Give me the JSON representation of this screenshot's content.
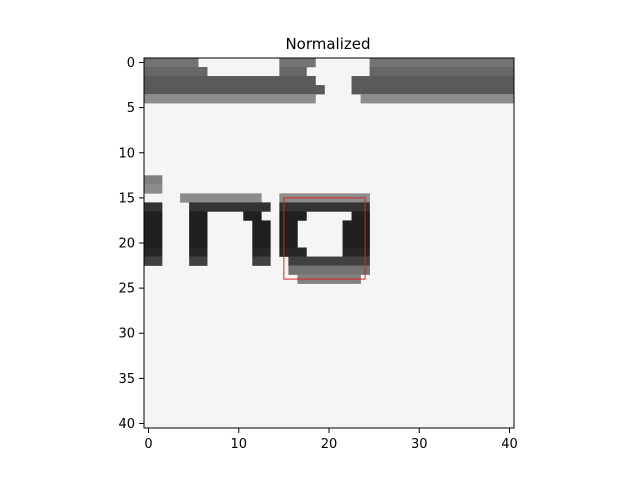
{
  "chart_data": {
    "type": "heatmap",
    "title": "Normalized",
    "colormap": "gray",
    "background_value_color": "#f5f5f5",
    "dark_color": "#111111",
    "xlim": [
      -0.5,
      40.5
    ],
    "ylim": [
      40.5,
      -0.5
    ],
    "x_ticks": [
      0,
      10,
      20,
      30,
      40
    ],
    "y_ticks": [
      0,
      5,
      10,
      15,
      20,
      25,
      30,
      35,
      40
    ],
    "grid_size": [
      41,
      41
    ],
    "grid_note": "41x41 normalized grayscale crop of text; dark pixels form letters 'in' and 'o' around rows 13-25, partial text row at top rows 0-4",
    "dark_pixels": [
      {
        "row": 0,
        "cols": [
          0,
          1,
          2,
          3,
          4,
          5,
          15,
          16,
          17,
          18,
          25,
          26,
          27,
          28,
          29,
          30,
          31,
          32,
          33,
          34,
          35,
          36,
          37,
          38,
          39,
          40
        ],
        "level": 0.45
      },
      {
        "row": 1,
        "cols": [
          0,
          1,
          2,
          3,
          4,
          5,
          6,
          15,
          16,
          17,
          25,
          26,
          27,
          28,
          29,
          30,
          31,
          32,
          33,
          34,
          35,
          36,
          37,
          38,
          39,
          40
        ],
        "level": 0.4
      },
      {
        "row": 2,
        "cols": [
          0,
          1,
          2,
          3,
          4,
          5,
          6,
          7,
          8,
          9,
          10,
          11,
          12,
          13,
          14,
          15,
          16,
          17,
          18,
          23,
          24,
          25,
          26,
          27,
          28,
          29,
          30,
          31,
          32,
          33,
          34,
          35,
          36,
          37,
          38,
          39,
          40
        ],
        "level": 0.35
      },
      {
        "row": 3,
        "cols": [
          0,
          1,
          2,
          3,
          4,
          5,
          6,
          7,
          8,
          9,
          10,
          11,
          12,
          13,
          14,
          15,
          16,
          17,
          18,
          19,
          23,
          24,
          25,
          26,
          27,
          28,
          29,
          30,
          31,
          32,
          33,
          34,
          35,
          36,
          37,
          38,
          39,
          40
        ],
        "level": 0.35
      },
      {
        "row": 4,
        "cols": [
          0,
          1,
          2,
          3,
          4,
          5,
          6,
          7,
          8,
          9,
          10,
          11,
          12,
          13,
          14,
          15,
          16,
          17,
          18,
          24,
          25,
          26,
          27,
          28,
          29,
          30,
          31,
          32,
          33,
          34,
          35,
          36,
          37,
          38,
          39,
          40
        ],
        "level": 0.55
      },
      {
        "row": 13,
        "cols": [
          0,
          1
        ],
        "level": 0.5
      },
      {
        "row": 14,
        "cols": [
          0,
          1
        ],
        "level": 0.55
      },
      {
        "row": 15,
        "cols": [
          4,
          5,
          6,
          7,
          8,
          9,
          10,
          11,
          12,
          15,
          16,
          17,
          18,
          19,
          20,
          21,
          22,
          23,
          24
        ],
        "level": 0.55
      },
      {
        "row": 16,
        "cols": [
          0,
          1,
          5,
          6,
          7,
          8,
          9,
          10,
          11,
          12,
          13,
          15,
          16,
          17,
          18,
          19,
          20,
          21,
          22,
          23,
          24
        ],
        "level": 0.2
      },
      {
        "row": 17,
        "cols": [
          0,
          1,
          5,
          6,
          11,
          12,
          15,
          16,
          17,
          23,
          24
        ],
        "level": 0.12
      },
      {
        "row": 18,
        "cols": [
          0,
          1,
          5,
          6,
          12,
          13,
          15,
          16,
          22,
          23,
          24
        ],
        "level": 0.12
      },
      {
        "row": 19,
        "cols": [
          0,
          1,
          5,
          6,
          12,
          13,
          15,
          16,
          22,
          23,
          24
        ],
        "level": 0.12
      },
      {
        "row": 20,
        "cols": [
          0,
          1,
          5,
          6,
          12,
          13,
          15,
          16,
          22,
          23,
          24
        ],
        "level": 0.12
      },
      {
        "row": 21,
        "cols": [
          0,
          1,
          5,
          6,
          12,
          13,
          15,
          16,
          17,
          22,
          23,
          24
        ],
        "level": 0.15
      },
      {
        "row": 22,
        "cols": [
          0,
          1,
          5,
          6,
          12,
          13,
          16,
          17,
          18,
          19,
          20,
          21,
          22,
          23,
          24
        ],
        "level": 0.25
      },
      {
        "row": 23,
        "cols": [
          16,
          17,
          18,
          19,
          20,
          21,
          22,
          23,
          24
        ],
        "level": 0.45
      },
      {
        "row": 24,
        "cols": [
          17,
          18,
          19,
          20,
          21,
          22,
          23
        ],
        "level": 0.5
      }
    ],
    "annotations": [
      {
        "type": "rectangle",
        "x0": 15,
        "y0": 15,
        "x1": 24,
        "y1": 24,
        "color": "#d62728"
      }
    ],
    "grid": false,
    "legend": "none"
  }
}
